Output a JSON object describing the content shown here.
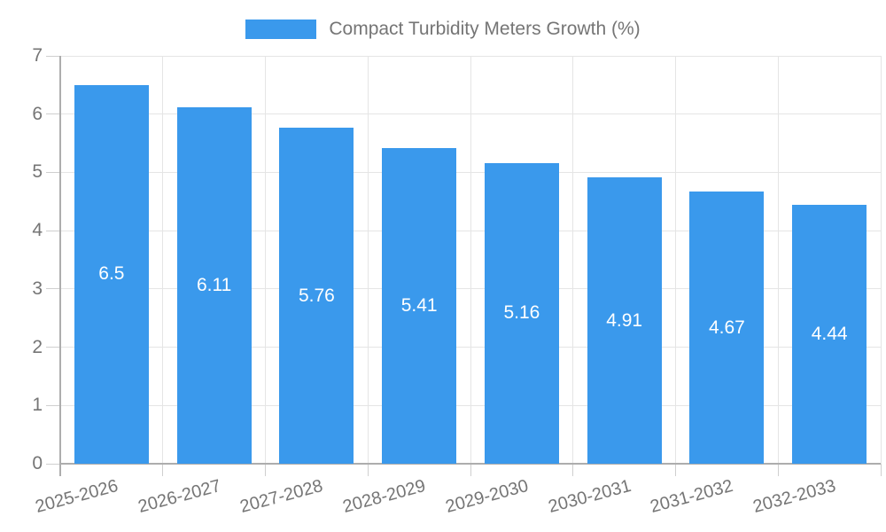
{
  "legend": {
    "label": "Compact Turbidity Meters Growth (%)",
    "swatch_color": "#3A99EC"
  },
  "chart_data": {
    "type": "bar",
    "title": "Compact Turbidity Meters Growth (%)",
    "categories": [
      "2025-2026",
      "2026-2027",
      "2027-2028",
      "2028-2029",
      "2029-2030",
      "2030-2031",
      "2031-2032",
      "2032-2033"
    ],
    "values": [
      6.5,
      6.11,
      5.76,
      5.41,
      5.16,
      4.91,
      4.67,
      4.44
    ],
    "bar_labels": [
      "6.5",
      "6.11",
      "5.76",
      "5.41",
      "5.16",
      "4.91",
      "4.67",
      "4.44"
    ],
    "xlabel": "",
    "ylabel": "",
    "ylim": [
      0,
      7
    ],
    "yticks": [
      0,
      1,
      2,
      3,
      4,
      5,
      6,
      7
    ],
    "grid": true,
    "legend_position": "top",
    "bar_color": "#3A99EC",
    "bar_label_color": "#ffffff",
    "axis_text_color": "#757575",
    "gridline_color": "#e5e5e5",
    "axis_line_color": "#adadad"
  }
}
